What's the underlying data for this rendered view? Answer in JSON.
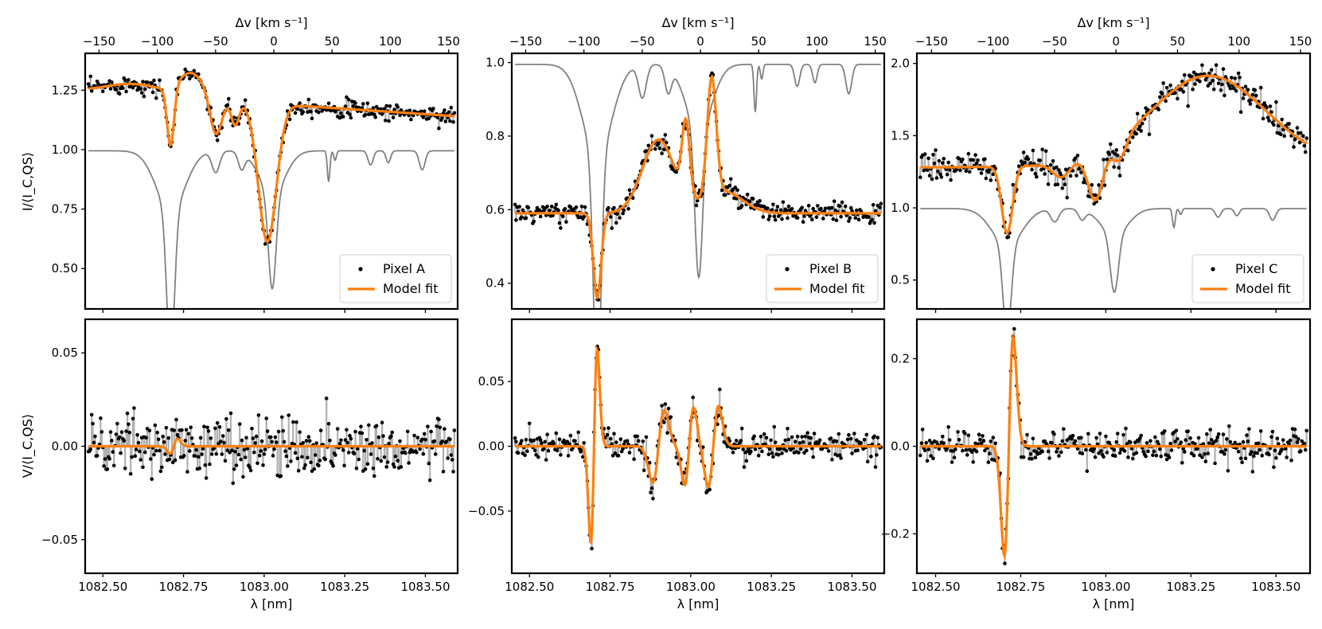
{
  "figure": {
    "top_axis_label": "Δv [km s⁻¹]",
    "top_axis_ticks": [
      "−150",
      "−100",
      "−50",
      "0",
      "50",
      "100",
      "150"
    ],
    "x_label": "λ [nm]",
    "x_ticks": [
      "1082.50",
      "1082.75",
      "1083.00",
      "1083.25",
      "1083.50"
    ],
    "y_label_top": "I/⟨I_C,QS⟩",
    "y_label_bottom": "V/⟨I_C,QS⟩",
    "legend_model": "Model fit",
    "colors": {
      "model": "#ff7f0e",
      "reference": "#808080",
      "data_band": "#b0b0b0",
      "points": "#000000"
    }
  },
  "chart_data": [
    {
      "type": "line",
      "panel": "intensity",
      "pixel": "Pixel A",
      "xlim": [
        1082.445,
        1083.6
      ],
      "ylim": [
        0.33,
        1.405
      ],
      "yticks": [
        0.5,
        0.75,
        1.0,
        1.25
      ],
      "ytick_labels": [
        "0.50",
        "0.75",
        "1.00",
        "1.25"
      ],
      "legend": [
        "Pixel A",
        "Model fit"
      ],
      "model": {
        "continuum_left": 1.245,
        "continuum_right": 1.14,
        "base_slope_peak": 1.29,
        "features": [
          {
            "center": 1082.71,
            "depth": 0.25,
            "width": 0.011,
            "type": "absorption"
          },
          {
            "center": 1082.775,
            "amp": 0.1,
            "width": 0.04,
            "type": "emission"
          },
          {
            "center": 1082.85,
            "depth": 0.16,
            "width": 0.018,
            "type": "absorption"
          },
          {
            "center": 1082.91,
            "depth": 0.1,
            "width": 0.012,
            "type": "absorption"
          },
          {
            "center": 1083.01,
            "depth": 0.58,
            "width": 0.028,
            "type": "absorption"
          }
        ]
      },
      "noise": 0.018
    },
    {
      "type": "line",
      "panel": "intensity",
      "pixel": "Pixel B",
      "xlim": [
        1082.445,
        1083.6
      ],
      "ylim": [
        0.33,
        1.025
      ],
      "yticks": [
        0.4,
        0.6,
        0.8,
        1.0
      ],
      "ytick_labels": [
        "0.4",
        "0.6",
        "0.8",
        "1.0"
      ],
      "legend": [
        "Pixel B",
        "Model fit"
      ],
      "model": {
        "continuum_left": 0.59,
        "continuum_right": 0.59,
        "features": [
          {
            "center": 1082.71,
            "depth": 0.23,
            "width": 0.012,
            "type": "absorption"
          },
          {
            "center": 1082.9,
            "amp": 0.2,
            "width": 0.05,
            "type": "emission"
          },
          {
            "center": 1082.985,
            "amp": 0.2,
            "width": 0.012,
            "type": "emission"
          },
          {
            "center": 1083.065,
            "amp": 0.32,
            "width": 0.014,
            "type": "emission"
          },
          {
            "center": 1083.1,
            "amp": 0.06,
            "width": 0.06,
            "type": "emission"
          }
        ]
      },
      "noise": 0.014
    },
    {
      "type": "line",
      "panel": "intensity",
      "pixel": "Pixel C",
      "xlim": [
        1082.445,
        1083.6
      ],
      "ylim": [
        0.3,
        2.07
      ],
      "yticks": [
        0.5,
        1.0,
        1.5,
        2.0
      ],
      "ytick_labels": [
        "0.5",
        "1.0",
        "1.5",
        "2.0"
      ],
      "legend": [
        "Pixel C",
        "Model fit"
      ],
      "model": {
        "continuum_left": 1.28,
        "continuum_right": 1.3,
        "features": [
          {
            "center": 1082.71,
            "depth": 0.46,
            "width": 0.016,
            "type": "absorption"
          },
          {
            "center": 1082.87,
            "depth": 0.1,
            "width": 0.025,
            "type": "absorption"
          },
          {
            "center": 1082.97,
            "depth": 0.33,
            "width": 0.022,
            "type": "absorption"
          },
          {
            "center": 1083.3,
            "amp": 0.62,
            "width": 0.17,
            "type": "emission"
          },
          {
            "center": 1083.04,
            "depth": 0.15,
            "width": 0.02,
            "type": "absorption"
          }
        ]
      },
      "noise": 0.05
    },
    {
      "type": "line",
      "panel": "stokes-v",
      "pixel": "Pixel A",
      "xlim": [
        1082.445,
        1083.6
      ],
      "ylim": [
        -0.068,
        0.068
      ],
      "yticks": [
        -0.05,
        0.0,
        0.05
      ],
      "ytick_labels": [
        "−0.05",
        "0.00",
        "0.05"
      ],
      "model": {
        "antisymmetric": [
          {
            "center": 1082.72,
            "amp": 0.004,
            "width": 0.012
          }
        ]
      },
      "noise": 0.008
    },
    {
      "type": "line",
      "panel": "stokes-v",
      "pixel": "Pixel B",
      "xlim": [
        1082.445,
        1083.6
      ],
      "ylim": [
        -0.098,
        0.098
      ],
      "yticks": [
        -0.05,
        0.0,
        0.05
      ],
      "ytick_labels": [
        "−0.05",
        "0.00",
        "0.05"
      ],
      "model": {
        "antisymmetric": [
          {
            "center": 1082.7,
            "amp": 0.075,
            "width": 0.01
          },
          {
            "center": 1082.9,
            "amp": 0.028,
            "width": 0.018
          },
          {
            "center": 1082.995,
            "amp": 0.03,
            "width": 0.014
          },
          {
            "center": 1083.07,
            "amp": 0.031,
            "width": 0.016
          }
        ]
      },
      "noise": 0.006
    },
    {
      "type": "line",
      "panel": "stokes-v",
      "pixel": "Pixel C",
      "xlim": [
        1082.445,
        1083.6
      ],
      "ylim": [
        -0.29,
        0.29
      ],
      "yticks": [
        -0.2,
        0.0,
        0.2
      ],
      "ytick_labels": [
        "−0.2",
        "0.0",
        "0.2"
      ],
      "model": {
        "antisymmetric": [
          {
            "center": 1082.715,
            "amp": 0.25,
            "width": 0.013
          }
        ]
      },
      "noise": 0.02
    }
  ]
}
